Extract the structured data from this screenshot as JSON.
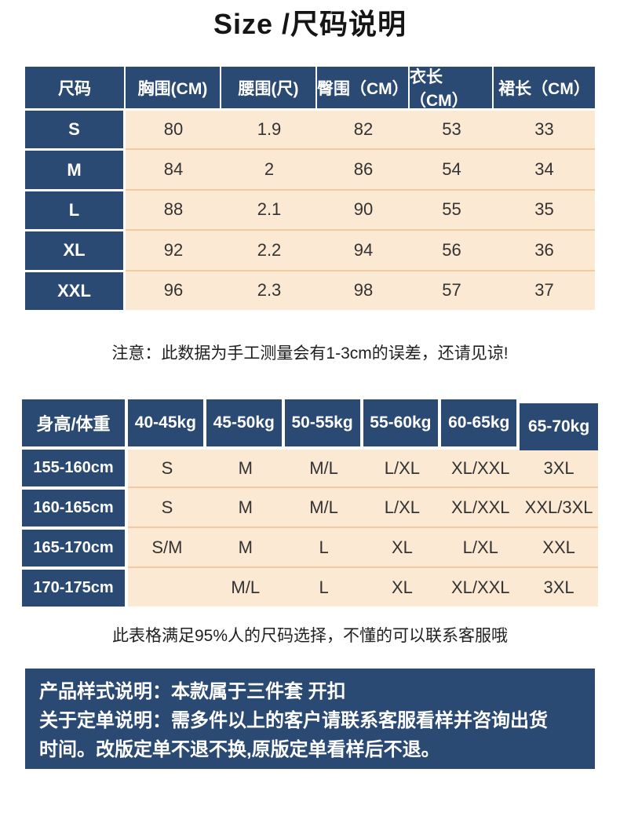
{
  "page": {
    "title": "Size /尺码说明"
  },
  "colors": {
    "navy": "#2B4A73",
    "cream": "#FCE9D3",
    "separator": "#F2C9A0"
  },
  "size_table": {
    "columns": [
      "尺码",
      "胸围(CM)",
      "腰围(尺)",
      "臀围（CM）",
      "衣长（CM）",
      "裙长（CM）"
    ],
    "rows": [
      {
        "size": "S",
        "values": [
          "80",
          "1.9",
          "82",
          "53",
          "33"
        ]
      },
      {
        "size": "M",
        "values": [
          "84",
          "2",
          "86",
          "54",
          "34"
        ]
      },
      {
        "size": "L",
        "values": [
          "88",
          "2.1",
          "90",
          "55",
          "35"
        ]
      },
      {
        "size": "XL",
        "values": [
          "92",
          "2.2",
          "94",
          "56",
          "36"
        ]
      },
      {
        "size": "XXL",
        "values": [
          "96",
          "2.3",
          "98",
          "57",
          "37"
        ]
      }
    ],
    "note": "注意：此数据为手工测量会有1-3cm的误差，还请见谅!"
  },
  "weight_table": {
    "corner": "身高/体重",
    "columns": [
      "40-45kg",
      "45-50kg",
      "50-55kg",
      "55-60kg",
      "60-65kg",
      "65-70kg"
    ],
    "rows": [
      {
        "height": "155-160cm",
        "values": [
          "S",
          "M",
          "M/L",
          "L/XL",
          "XL/XXL",
          "3XL"
        ]
      },
      {
        "height": "160-165cm",
        "values": [
          "S",
          "M",
          "M/L",
          "L/XL",
          "XL/XXL",
          "XXL/3XL"
        ]
      },
      {
        "height": "165-170cm",
        "values": [
          "S/M",
          "M",
          "L",
          "XL",
          "L/XL",
          "XXL"
        ]
      },
      {
        "height": "170-175cm",
        "values": [
          "",
          "M/L",
          "L",
          "XL",
          "XL/XXL",
          "3XL"
        ]
      }
    ],
    "note": "此表格满足95%人的尺码选择，不懂的可以联系客服哦"
  },
  "info_box": {
    "line1": "产品样式说明：本款属于三件套 开扣",
    "line2": "关于定单说明：需多件以上的客户请联系客服看样并咨询出货",
    "line3": "时间。改版定单不退不换,原版定单看样后不退。"
  }
}
